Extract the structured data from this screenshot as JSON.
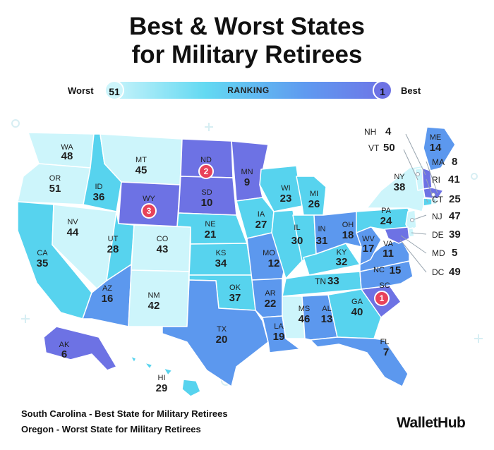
{
  "title": {
    "line1": "Best & Worst States",
    "line2": "for Military Retirees"
  },
  "scale": {
    "worst_label": "Worst",
    "best_label": "Best",
    "worst_value": "51",
    "best_value": "1",
    "bar_label": "RANKING"
  },
  "colors": {
    "tier1": "#6d72e4",
    "tier2": "#5c98ee",
    "tier3": "#57d3ee",
    "tier4": "#cdf5fb",
    "badge": "#e8425a",
    "border": "#ffffff"
  },
  "states": {
    "WA": {
      "abbr": "WA",
      "rank": "48"
    },
    "OR": {
      "abbr": "OR",
      "rank": "51"
    },
    "CA": {
      "abbr": "CA",
      "rank": "35"
    },
    "ID": {
      "abbr": "ID",
      "rank": "36"
    },
    "NV": {
      "abbr": "NV",
      "rank": "44"
    },
    "MT": {
      "abbr": "MT",
      "rank": "45"
    },
    "WY": {
      "abbr": "WY",
      "rank": "3"
    },
    "UT": {
      "abbr": "UT",
      "rank": "28"
    },
    "AZ": {
      "abbr": "AZ",
      "rank": "16"
    },
    "CO": {
      "abbr": "CO",
      "rank": "43"
    },
    "NM": {
      "abbr": "NM",
      "rank": "42"
    },
    "ND": {
      "abbr": "ND",
      "rank": "2"
    },
    "SD": {
      "abbr": "SD",
      "rank": "10"
    },
    "NE": {
      "abbr": "NE",
      "rank": "21"
    },
    "KS": {
      "abbr": "KS",
      "rank": "34"
    },
    "OK": {
      "abbr": "OK",
      "rank": "37"
    },
    "TX": {
      "abbr": "TX",
      "rank": "20"
    },
    "MN": {
      "abbr": "MN",
      "rank": "9"
    },
    "IA": {
      "abbr": "IA",
      "rank": "27"
    },
    "MO": {
      "abbr": "MO",
      "rank": "12"
    },
    "AR": {
      "abbr": "AR",
      "rank": "22"
    },
    "LA": {
      "abbr": "LA",
      "rank": "19"
    },
    "WI": {
      "abbr": "WI",
      "rank": "23"
    },
    "IL": {
      "abbr": "IL",
      "rank": "30"
    },
    "MS": {
      "abbr": "MS",
      "rank": "46"
    },
    "MI": {
      "abbr": "MI",
      "rank": "26"
    },
    "IN": {
      "abbr": "IN",
      "rank": "31"
    },
    "KY": {
      "abbr": "KY",
      "rank": "32"
    },
    "TN": {
      "abbr": "TN",
      "rank": "33"
    },
    "AL": {
      "abbr": "AL",
      "rank": "13"
    },
    "OH": {
      "abbr": "OH",
      "rank": "18"
    },
    "GA": {
      "abbr": "GA",
      "rank": "40"
    },
    "FL": {
      "abbr": "FL",
      "rank": "7"
    },
    "SC": {
      "abbr": "SC",
      "rank": "1"
    },
    "NC": {
      "abbr": "NC",
      "rank": "15"
    },
    "VA": {
      "abbr": "VA",
      "rank": "11"
    },
    "WV": {
      "abbr": "WV",
      "rank": "17"
    },
    "PA": {
      "abbr": "PA",
      "rank": "24"
    },
    "NY": {
      "abbr": "NY",
      "rank": "38"
    },
    "ME": {
      "abbr": "ME",
      "rank": "14"
    },
    "AK": {
      "abbr": "AK",
      "rank": "6"
    },
    "HI": {
      "abbr": "HI",
      "rank": "29"
    },
    "NH": {
      "abbr": "NH",
      "rank": "4"
    },
    "VT": {
      "abbr": "VT",
      "rank": "50"
    },
    "MA": {
      "abbr": "MA",
      "rank": "8"
    },
    "RI": {
      "abbr": "RI",
      "rank": "41"
    },
    "CT": {
      "abbr": "CT",
      "rank": "25"
    },
    "NJ": {
      "abbr": "NJ",
      "rank": "47"
    },
    "DE": {
      "abbr": "DE",
      "rank": "39"
    },
    "MD": {
      "abbr": "MD",
      "rank": "5"
    },
    "DC": {
      "abbr": "DC",
      "rank": "49"
    }
  },
  "badges": {
    "SC": "1",
    "ND": "2",
    "WY": "3"
  },
  "notes": {
    "best_state": "South Carolina",
    "best_text": " - Best State for Military Retirees",
    "worst_state": "Oregon",
    "worst_text": " - Worst State for Military Retirees"
  },
  "brand": "WalletHub"
}
